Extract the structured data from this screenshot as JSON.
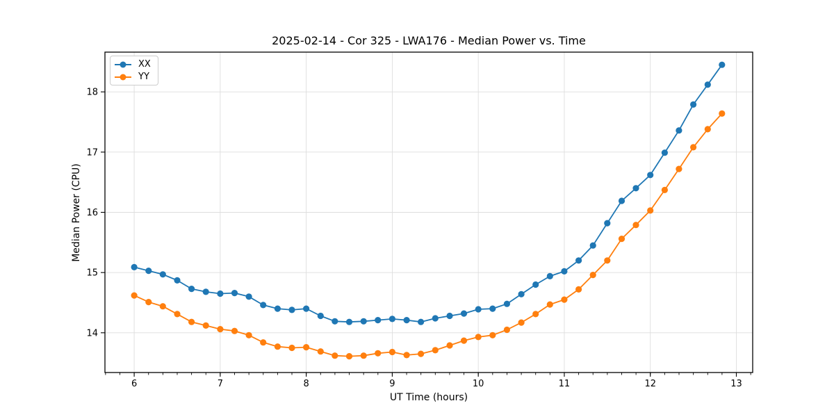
{
  "chart_data": {
    "type": "line",
    "title": "2025-02-14 - Cor 325 - LWA176 - Median Power vs. Time",
    "xlabel": "UT Time (hours)",
    "ylabel": "Median Power (CPU)",
    "xlim": [
      5.66,
      13.19
    ],
    "ylim": [
      13.34,
      18.66
    ],
    "x_ticks": [
      6,
      7,
      8,
      9,
      10,
      11,
      12,
      13
    ],
    "y_ticks": [
      14,
      15,
      16,
      17,
      18
    ],
    "x_minor_step": 0.16667,
    "grid": true,
    "grid_color": "#dddddd",
    "legend_position": "upper-left",
    "marker": "circle",
    "x": [
      6.0,
      6.167,
      6.333,
      6.5,
      6.667,
      6.833,
      7.0,
      7.167,
      7.333,
      7.5,
      7.667,
      7.833,
      8.0,
      8.167,
      8.333,
      8.5,
      8.667,
      8.833,
      9.0,
      9.167,
      9.333,
      9.5,
      9.667,
      9.833,
      10.0,
      10.167,
      10.333,
      10.5,
      10.667,
      10.833,
      11.0,
      11.167,
      11.333,
      11.5,
      11.667,
      11.833,
      12.0,
      12.167,
      12.333,
      12.5,
      12.667,
      12.833
    ],
    "series": [
      {
        "name": "XX",
        "color": "#1f77b4",
        "values": [
          15.09,
          15.03,
          14.97,
          14.87,
          14.73,
          14.68,
          14.65,
          14.66,
          14.6,
          14.46,
          14.4,
          14.38,
          14.4,
          14.28,
          14.19,
          14.18,
          14.19,
          14.21,
          14.23,
          14.21,
          14.18,
          14.24,
          14.28,
          14.32,
          14.39,
          14.4,
          14.48,
          14.64,
          14.8,
          14.94,
          15.02,
          15.2,
          15.45,
          15.82,
          16.19,
          16.4,
          16.62,
          16.99,
          17.36,
          17.79,
          18.12,
          18.45
        ]
      },
      {
        "name": "YY",
        "color": "#ff7f0e",
        "values": [
          14.62,
          14.51,
          14.44,
          14.31,
          14.18,
          14.12,
          14.06,
          14.03,
          13.96,
          13.84,
          13.77,
          13.75,
          13.76,
          13.69,
          13.62,
          13.61,
          13.62,
          13.66,
          13.68,
          13.63,
          13.65,
          13.71,
          13.79,
          13.87,
          13.93,
          13.96,
          14.05,
          14.17,
          14.31,
          14.47,
          14.55,
          14.72,
          14.96,
          15.2,
          15.56,
          15.79,
          16.03,
          16.37,
          16.72,
          17.08,
          17.38,
          17.64
        ]
      }
    ]
  },
  "layout_text": {
    "note": ""
  }
}
